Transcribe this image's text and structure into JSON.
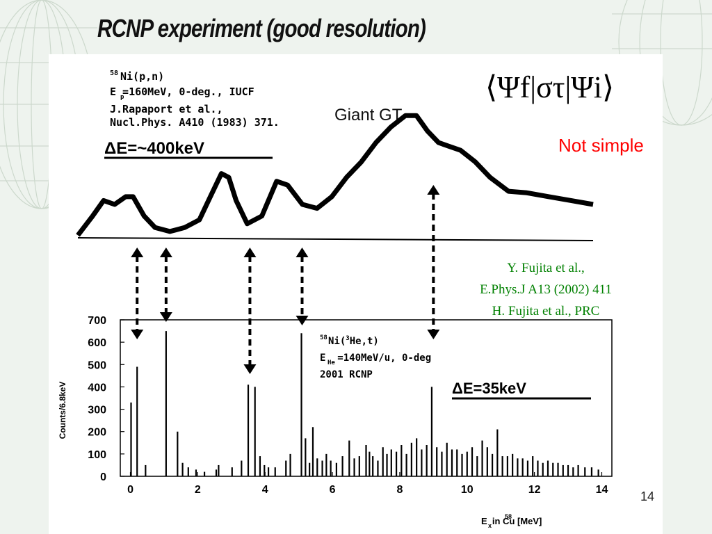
{
  "slide": {
    "title": "RCNP experiment (good resolution)",
    "page_number": "14"
  },
  "top_panel": {
    "info_lines": [
      "Ni(p,n)",
      "E =160MeV, 0-deg., IUCF",
      "J.Rapaport  et al.,",
      "Nucl.Phys.  A410 (1983) 371."
    ],
    "info_superscript": "58",
    "info_subscript": "p",
    "resolution_label": "ΔE=~400keV",
    "giant_gt_label": "Giant GT",
    "matrix_element": "⟨Ψf|στ|Ψi⟩",
    "not_simple_label": "Not simple"
  },
  "references": [
    "Y. Fujita et al.,",
    "E.Phys.J A13 (2002) 411",
    "H. Fujita et al., PRC"
  ],
  "bottom_panel": {
    "reaction_label": "Ni(He,t)",
    "reaction_mass": "58",
    "reaction_he_mass": "3",
    "beam_label": "E  =140MeV/u, 0-deg",
    "beam_subscript": "He",
    "lab_label": "2001 RCNP",
    "resolution_label": "ΔE=35keV"
  },
  "colors": {
    "accent_red": "#ff0000",
    "reference_green": "#008000",
    "trace": "#000000"
  },
  "chart_data": [
    {
      "type": "line",
      "description_source": "top spectrum 58Ni(p,n)",
      "x": [
        -0.4,
        0,
        0.3,
        0.6,
        0.9,
        1.1,
        1.4,
        1.7,
        2.1,
        2.5,
        2.9,
        3.2,
        3.5,
        3.7,
        3.9,
        4.2,
        4.6,
        5.0,
        5.3,
        5.7,
        6.1,
        6.5,
        6.9,
        7.3,
        7.7,
        8.1,
        8.5,
        8.8,
        9.1,
        9.4,
        9.7,
        10.0,
        10.4,
        10.8,
        11.3,
        11.8,
        12.4,
        13.0,
        13.6
      ],
      "y": [
        0.05,
        0.3,
        0.5,
        0.45,
        0.55,
        0.55,
        0.3,
        0.15,
        0.1,
        0.15,
        0.25,
        0.55,
        0.85,
        0.8,
        0.5,
        0.2,
        0.3,
        0.75,
        0.7,
        0.45,
        0.4,
        0.55,
        0.8,
        1.0,
        1.25,
        1.45,
        1.6,
        1.6,
        1.4,
        1.25,
        1.2,
        1.15,
        1.0,
        0.8,
        0.62,
        0.6,
        0.55,
        0.5,
        0.45
      ],
      "xlim": [
        -0.4,
        13.6
      ],
      "ylim": [
        0,
        1.8
      ]
    },
    {
      "type": "bar",
      "description_source": "bottom spectrum 58Ni(3He,t)",
      "xlabel": "E  in Cu [MeV]",
      "xlabel_subscript": "x",
      "xlabel_superscript": "58",
      "ylabel": "Counts/6.8keV",
      "xlim": [
        -0.3,
        14.3
      ],
      "ylim": [
        0,
        700
      ],
      "xticks": [
        0,
        2,
        4,
        6,
        8,
        10,
        12,
        14
      ],
      "yticks": [
        0,
        100,
        200,
        300,
        400,
        500,
        600,
        700
      ],
      "x": [
        0.02,
        0.2,
        0.45,
        1.06,
        1.4,
        1.55,
        1.72,
        1.95,
        2.2,
        2.55,
        2.62,
        3.02,
        3.3,
        3.5,
        3.7,
        3.85,
        3.98,
        4.1,
        4.3,
        4.62,
        4.75,
        5.08,
        5.2,
        5.32,
        5.42,
        5.55,
        5.7,
        5.82,
        5.95,
        6.12,
        6.3,
        6.5,
        6.65,
        6.8,
        7.0,
        7.1,
        7.2,
        7.35,
        7.5,
        7.62,
        7.75,
        7.9,
        8.05,
        8.2,
        8.35,
        8.5,
        8.65,
        8.8,
        8.95,
        9.1,
        9.25,
        9.4,
        9.55,
        9.7,
        9.85,
        10.0,
        10.15,
        10.3,
        10.45,
        10.6,
        10.75,
        10.9,
        11.05,
        11.2,
        11.35,
        11.5,
        11.65,
        11.8,
        11.95,
        12.1,
        12.25,
        12.4,
        12.55,
        12.7,
        12.85,
        13.0,
        13.15,
        13.3,
        13.5,
        13.7,
        13.9
      ],
      "values": [
        330,
        490,
        50,
        650,
        200,
        60,
        40,
        30,
        20,
        30,
        50,
        40,
        70,
        410,
        400,
        90,
        50,
        40,
        40,
        70,
        100,
        640,
        170,
        60,
        220,
        80,
        70,
        100,
        70,
        60,
        90,
        160,
        80,
        90,
        140,
        110,
        90,
        70,
        130,
        100,
        120,
        110,
        140,
        100,
        150,
        170,
        120,
        140,
        400,
        130,
        110,
        150,
        120,
        120,
        100,
        110,
        130,
        90,
        160,
        130,
        100,
        210,
        90,
        90,
        100,
        80,
        80,
        70,
        90,
        70,
        60,
        70,
        60,
        60,
        50,
        50,
        40,
        50,
        40,
        40,
        30
      ]
    }
  ]
}
